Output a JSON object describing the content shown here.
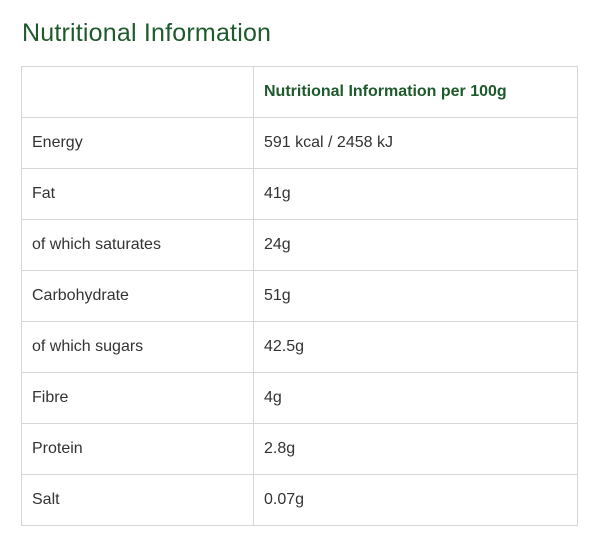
{
  "page": {
    "title": "Nutritional Information"
  },
  "table": {
    "header": {
      "label_column": "",
      "value_column": "Nutritional Information per 100g"
    },
    "rows": [
      {
        "label": "Energy",
        "value": "591 kcal / 2458 kJ"
      },
      {
        "label": "Fat",
        "value": "41g"
      },
      {
        "label": "of which saturates",
        "value": "24g"
      },
      {
        "label": "Carbohydrate",
        "value": "51g"
      },
      {
        "label": "of which sugars",
        "value": "42.5g"
      },
      {
        "label": "Fibre",
        "value": "4g"
      },
      {
        "label": "Protein",
        "value": "2.8g"
      },
      {
        "label": "Salt",
        "value": "0.07g"
      }
    ]
  },
  "colors": {
    "heading": "#1f5a2c",
    "text": "#333333",
    "border": "#d6d6d6"
  }
}
